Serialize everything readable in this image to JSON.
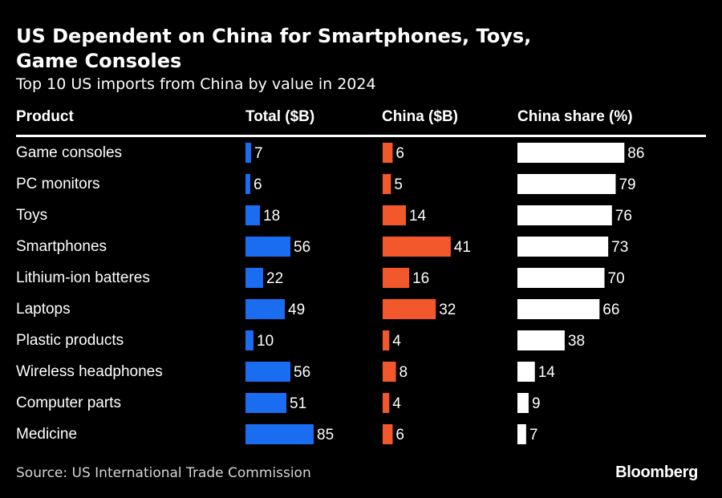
{
  "title": "US Dependent on China for Smartphones, Toys, Game Consoles",
  "subtitle": "Top 10 US imports from China by value in 2024",
  "source": "Source: US International Trade Commission",
  "brand": "Bloomberg",
  "colors": {
    "total": "#1a6cf0",
    "china": "#f2582b",
    "share": "#ffffff",
    "background": "#000000"
  },
  "chart_data": {
    "type": "table",
    "columns": [
      "Product",
      "Total ($B)",
      "China ($B)",
      "China share (%)"
    ],
    "rows": [
      {
        "product": "Game consoles",
        "total": 7,
        "china": 6,
        "share": 86
      },
      {
        "product": "PC monitors",
        "total": 6,
        "china": 5,
        "share": 79
      },
      {
        "product": "Toys",
        "total": 18,
        "china": 14,
        "share": 76
      },
      {
        "product": "Smartphones",
        "total": 56,
        "china": 41,
        "share": 73
      },
      {
        "product": "Lithium-ion batteres",
        "total": 22,
        "china": 16,
        "share": 70
      },
      {
        "product": "Laptops",
        "total": 49,
        "china": 32,
        "share": 66
      },
      {
        "product": "Plastic products",
        "total": 10,
        "china": 4,
        "share": 38
      },
      {
        "product": "Wireless headphones",
        "total": 56,
        "china": 8,
        "share": 14
      },
      {
        "product": "Computer parts",
        "total": 51,
        "china": 4,
        "share": 9
      },
      {
        "product": "Medicine",
        "total": 85,
        "china": 6,
        "share": 7
      }
    ]
  }
}
